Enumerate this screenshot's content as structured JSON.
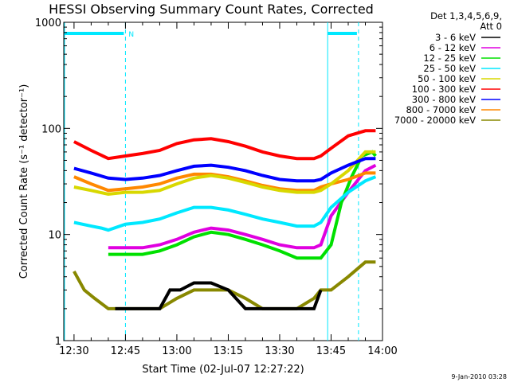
{
  "chart_data": {
    "type": "line",
    "title": "HESSI Observing Summary Count Rates, Corrected",
    "xlabel": "Start Time (02-Jul-07 12:27:22)",
    "ylabel": "Corrected Count Rate (s⁻¹ detector⁻¹)",
    "y_scale": "log",
    "ylim": [
      1,
      1000
    ],
    "xlim_minutes_after_1230": [
      -3,
      90
    ],
    "x_ticks": [
      "12:30",
      "12:45",
      "13:00",
      "13:15",
      "13:30",
      "13:45",
      "14:00"
    ],
    "x_tick_minutes": [
      0,
      15,
      30,
      45,
      60,
      75,
      90
    ],
    "y_ticks": [
      1,
      10,
      100,
      1000
    ],
    "y_tick_labels": [
      "1",
      "10",
      "100",
      "1000"
    ],
    "legend_header": [
      "Det 1,3,4,5,6,9,",
      "Att 0"
    ],
    "legend_position": "top-right outside plot",
    "night_markers": {
      "solid_lines_minutes": [
        -3,
        74
      ],
      "dashed_lines_minutes": [
        15,
        83
      ],
      "labels": [
        {
          "text": "N",
          "minute": 15
        }
      ]
    },
    "series": [
      {
        "name": "3 - 6 keV",
        "color": "#000000",
        "x": [
          12,
          15,
          20,
          25,
          28,
          31,
          35,
          40,
          45,
          50,
          55,
          60,
          65,
          70,
          72
        ],
        "y": [
          2,
          2,
          2,
          2,
          3,
          3,
          3.5,
          3.5,
          3,
          2,
          2,
          2,
          2,
          2,
          3
        ]
      },
      {
        "name": "6 - 12 keV",
        "color": "#e000e0",
        "x": [
          10,
          15,
          20,
          25,
          30,
          35,
          40,
          45,
          50,
          55,
          60,
          65,
          70,
          72,
          75,
          80,
          85,
          88
        ],
        "y": [
          7.5,
          7.5,
          7.5,
          8,
          9,
          10.5,
          11.5,
          11,
          10,
          9,
          8,
          7.5,
          7.5,
          8,
          15,
          25,
          40,
          45
        ]
      },
      {
        "name": "12 - 25 keV",
        "color": "#00e000",
        "x": [
          10,
          15,
          20,
          25,
          30,
          35,
          40,
          45,
          50,
          55,
          60,
          65,
          70,
          72,
          75,
          78,
          81,
          84,
          87,
          88
        ],
        "y": [
          6.5,
          6.5,
          6.5,
          7,
          8,
          9.5,
          10.5,
          10,
          9,
          8,
          7,
          6,
          6,
          6,
          8,
          20,
          35,
          55,
          60,
          55
        ]
      },
      {
        "name": "25 - 50 keV",
        "color": "#00e8ff",
        "x": [
          0,
          5,
          8,
          10,
          15,
          20,
          25,
          30,
          35,
          40,
          45,
          50,
          55,
          60,
          65,
          70,
          72,
          75,
          80,
          85,
          88
        ],
        "y": [
          13,
          12,
          11.5,
          11,
          12.5,
          13,
          14,
          16,
          18,
          18,
          17,
          15.5,
          14,
          13,
          12,
          12,
          13,
          18,
          25,
          32,
          35
        ]
      },
      {
        "name": "50 - 100 keV",
        "color": "#d8d800",
        "x": [
          0,
          5,
          10,
          15,
          20,
          25,
          30,
          35,
          40,
          45,
          50,
          55,
          60,
          65,
          70,
          72,
          75,
          80,
          85,
          88
        ],
        "y": [
          28,
          26,
          24,
          25,
          25,
          26,
          30,
          34,
          36,
          34,
          31,
          28,
          26,
          25,
          25,
          26,
          30,
          40,
          60,
          60
        ]
      },
      {
        "name": "100 - 300 keV",
        "color": "#ff0000",
        "x": [
          0,
          5,
          10,
          15,
          20,
          25,
          30,
          35,
          40,
          45,
          50,
          55,
          60,
          65,
          70,
          72,
          75,
          80,
          85,
          88
        ],
        "y": [
          75,
          62,
          52,
          55,
          58,
          62,
          72,
          78,
          80,
          75,
          68,
          60,
          55,
          52,
          52,
          55,
          65,
          85,
          95,
          95
        ]
      },
      {
        "name": "300 - 800 keV",
        "color": "#0000ff",
        "x": [
          0,
          5,
          10,
          15,
          20,
          25,
          30,
          35,
          40,
          45,
          50,
          55,
          60,
          65,
          70,
          72,
          75,
          80,
          85,
          88
        ],
        "y": [
          42,
          38,
          34,
          33,
          34,
          36,
          40,
          44,
          45,
          43,
          40,
          36,
          33,
          32,
          32,
          33,
          38,
          45,
          52,
          52
        ]
      },
      {
        "name": "800 - 7000 keV",
        "color": "#ff8800",
        "x": [
          0,
          5,
          10,
          15,
          20,
          25,
          30,
          35,
          40,
          45,
          50,
          55,
          60,
          65,
          70,
          72,
          75,
          80,
          85,
          88
        ],
        "y": [
          35,
          30,
          26,
          27,
          28,
          30,
          34,
          37,
          37,
          35,
          32,
          29,
          27,
          26,
          26,
          28,
          30,
          33,
          38,
          38
        ]
      },
      {
        "name": "7000 - 20000 keV",
        "color": "#888800",
        "x": [
          0,
          3,
          6,
          10,
          15,
          20,
          25,
          30,
          35,
          40,
          45,
          50,
          55,
          60,
          65,
          70,
          72,
          75,
          80,
          85,
          88
        ],
        "y": [
          4.5,
          3,
          2.5,
          2,
          2,
          2,
          2,
          2.5,
          3,
          3,
          3,
          2.5,
          2,
          2,
          2,
          2.5,
          3,
          3,
          4,
          5.5,
          5.5
        ]
      }
    ]
  },
  "footer": {
    "timestamp": "9-Jan-2010 03:28"
  }
}
